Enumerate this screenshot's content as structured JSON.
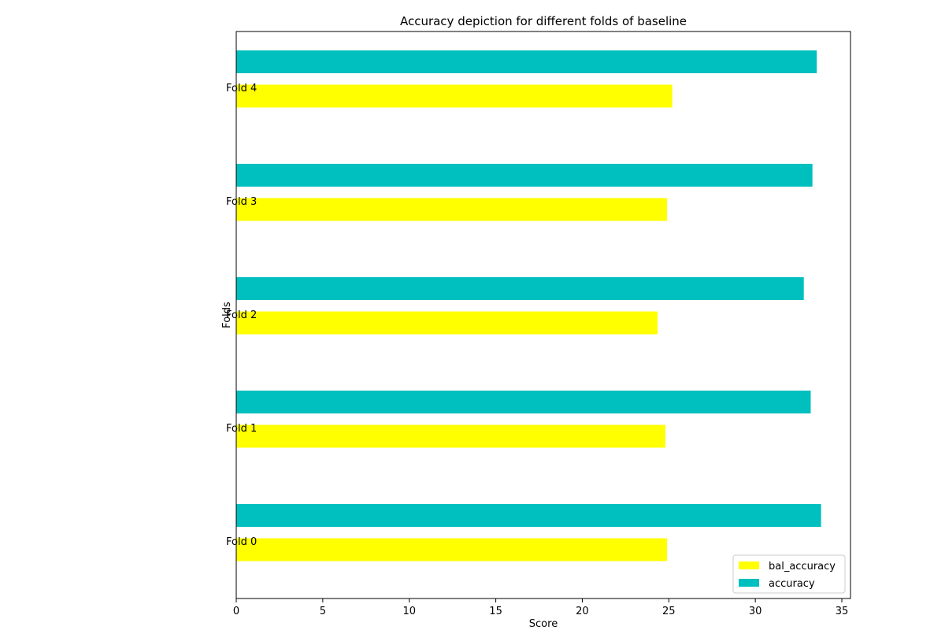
{
  "chart_data": {
    "type": "bar",
    "orientation": "horizontal",
    "title": "Accuracy depiction for different folds of baseline",
    "xlabel": "Score",
    "ylabel": "Folds",
    "xlim": [
      0,
      35.5
    ],
    "xticks": [
      0,
      5,
      10,
      15,
      20,
      25,
      30,
      35
    ],
    "categories": [
      "Fold 0",
      "Fold 1",
      "Fold 2",
      "Fold 3",
      "Fold 4"
    ],
    "series": [
      {
        "name": "bal_accuracy",
        "color": "#ffff00",
        "values": [
          24.9,
          24.8,
          24.35,
          24.9,
          25.2
        ]
      },
      {
        "name": "accuracy",
        "color": "#00bfbf",
        "values": [
          33.8,
          33.2,
          32.8,
          33.3,
          33.55
        ]
      }
    ],
    "grid": false,
    "legend_position": "bottom-right"
  }
}
